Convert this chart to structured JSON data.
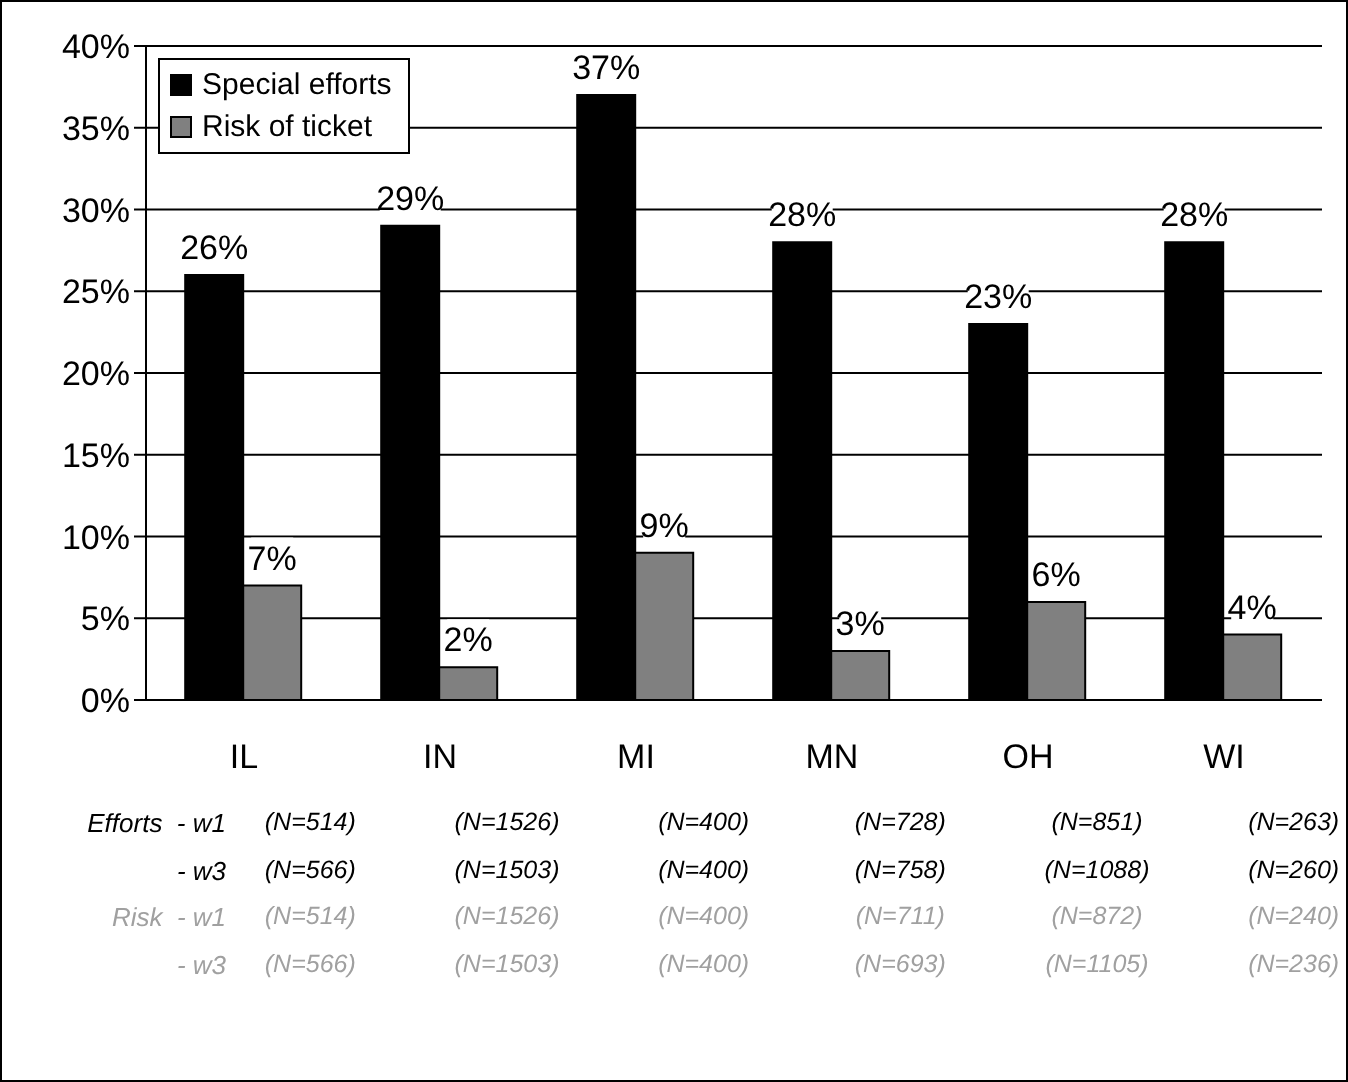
{
  "chart_data": {
    "type": "bar",
    "categories": [
      "IL",
      "IN",
      "MI",
      "MN",
      "OH",
      "WI"
    ],
    "series": [
      {
        "name": "Special efforts",
        "color": "#000000",
        "values": [
          26,
          29,
          37,
          28,
          23,
          28
        ],
        "value_labels": [
          "26%",
          "29%",
          "37%",
          "28%",
          "23%",
          "28%"
        ]
      },
      {
        "name": "Risk of ticket",
        "color": "#808080",
        "values": [
          7,
          2,
          9,
          3,
          6,
          4
        ],
        "value_labels": [
          "7%",
          "2%",
          "9%",
          "3%",
          "6%",
          "4%"
        ]
      }
    ],
    "ylim": [
      0,
      40
    ],
    "yticks": [
      {
        "value": 0,
        "label": "0%"
      },
      {
        "value": 5,
        "label": "5%"
      },
      {
        "value": 10,
        "label": "10%"
      },
      {
        "value": 15,
        "label": "15%"
      },
      {
        "value": 20,
        "label": "20%"
      },
      {
        "value": 25,
        "label": "25%"
      },
      {
        "value": 30,
        "label": "30%"
      },
      {
        "value": 35,
        "label": "35%"
      },
      {
        "value": 40,
        "label": "40%"
      }
    ],
    "grid": "y",
    "legend": "top left",
    "annotations": [
      "Efforts  - w1",
      "(N=514)",
      "(N=1526)",
      "(N=400)",
      "(N=728)",
      "(N=851)",
      "(N=263)",
      "- w3",
      "(N=566)",
      "(N=1503)",
      "(N=400)",
      "(N=758)",
      "(N=1088)",
      "(N=260)",
      "Risk  - w1",
      "(N=514)",
      "(N=1526)",
      "(N=400)",
      "(N=711)",
      "(N=872)",
      "(N=240)",
      "- w3",
      "(N=566)",
      "(N=1503)",
      "(N=400)",
      "(N=693)",
      "(N=1105)",
      "(N=236)"
    ]
  }
}
